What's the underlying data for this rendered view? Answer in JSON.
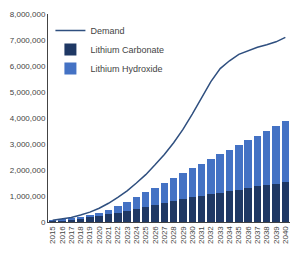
{
  "chart_data": {
    "type": "bar",
    "stacked": true,
    "categories": [
      "2015",
      "2016",
      "2017",
      "2018",
      "2019",
      "2020",
      "2021",
      "2022",
      "2023",
      "2024",
      "2025",
      "2026",
      "2027",
      "2028",
      "2029",
      "2030",
      "2031",
      "2032",
      "2033",
      "2034",
      "2035",
      "2036",
      "2037",
      "2038",
      "2039",
      "2040"
    ],
    "series": [
      {
        "name": "Demand",
        "type": "line",
        "color": "#2f4f7f",
        "values": [
          70000,
          120000,
          175000,
          270000,
          380000,
          530000,
          720000,
          950000,
          1200000,
          1500000,
          1820000,
          2200000,
          2600000,
          3050000,
          3560000,
          4150000,
          4800000,
          5400000,
          5900000,
          6200000,
          6450000,
          6600000,
          6720000,
          6820000,
          6930000,
          7100000
        ]
      },
      {
        "name": "Lithium Carbonate",
        "type": "bar",
        "color": "#1f3864",
        "values": [
          55000,
          70000,
          90000,
          130000,
          175000,
          230000,
          290000,
          360000,
          430000,
          510000,
          590000,
          660000,
          730000,
          810000,
          880000,
          950000,
          1010000,
          1070000,
          1130000,
          1190000,
          1250000,
          1310000,
          1370000,
          1420000,
          1480000,
          1540000
        ]
      },
      {
        "name": "Lithium Hydroxide",
        "type": "bar",
        "color": "#4472c4",
        "values": [
          15000,
          25000,
          40000,
          60000,
          95000,
          135000,
          190000,
          260000,
          345000,
          440000,
          545000,
          655000,
          765000,
          880000,
          990000,
          1110000,
          1230000,
          1350000,
          1470000,
          1590000,
          1710000,
          1830000,
          1950000,
          2080000,
          2210000,
          2360000
        ]
      }
    ],
    "ylim": [
      0,
      8000000
    ],
    "yticks": [
      0,
      {
        "value": 1000000,
        "label": "1,000,000"
      },
      {
        "value": 2000000,
        "label": "2,000,000"
      },
      {
        "value": 3000000,
        "label": "3,000,000"
      },
      {
        "value": 4000000,
        "label": "4,000,000"
      },
      {
        "value": 5000000,
        "label": "5,000,000"
      },
      {
        "value": 6000000,
        "label": "6,000,000"
      },
      {
        "value": 7000000,
        "label": "7,000,000"
      },
      {
        "value": 8000000,
        "label": "8,000,000"
      }
    ],
    "grid": false,
    "legend": "upper left"
  }
}
